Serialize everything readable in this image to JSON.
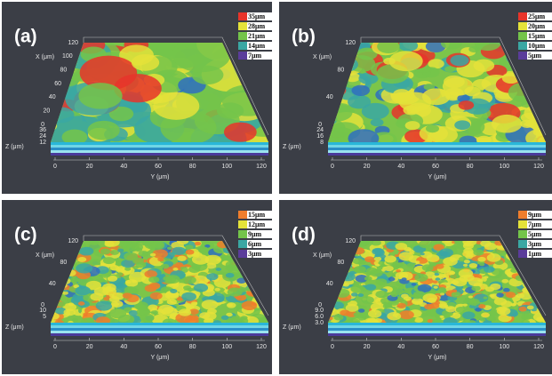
{
  "panels": [
    {
      "label": "(a)",
      "legend": [
        {
          "text": "35μm",
          "color": "#e8342a"
        },
        {
          "text": "28μm",
          "color": "#e4e23a"
        },
        {
          "text": "21μm",
          "color": "#74c44a"
        },
        {
          "text": "14μm",
          "color": "#3aa7a3"
        },
        {
          "text": "7μm",
          "color": "#5a3c9a"
        }
      ],
      "x_axis_label": "X (μm)",
      "x_ticks": [
        "120",
        "100",
        "80",
        "60",
        "40",
        "20",
        "0"
      ],
      "z_axis_label": "Z (μm)",
      "z_ticks": [
        "36",
        "24",
        "12"
      ],
      "y_axis_label": "Y (μm)",
      "y_ticks": [
        "0",
        "20",
        "40",
        "60",
        "80",
        "100",
        "120"
      ]
    },
    {
      "label": "(b)",
      "legend": [
        {
          "text": "25μm",
          "color": "#e8342a"
        },
        {
          "text": "20μm",
          "color": "#e4e23a"
        },
        {
          "text": "15μm",
          "color": "#74c44a"
        },
        {
          "text": "10μm",
          "color": "#3aa7a3"
        },
        {
          "text": "5μm",
          "color": "#5a3c9a"
        }
      ],
      "x_axis_label": "X (μm)",
      "x_ticks": [
        "120",
        "80",
        "40",
        "0"
      ],
      "z_axis_label": "Z (μm)",
      "z_ticks": [
        "24",
        "16",
        "8"
      ],
      "y_axis_label": "Y (μm)",
      "y_ticks": [
        "0",
        "20",
        "40",
        "60",
        "80",
        "100",
        "120"
      ]
    },
    {
      "label": "(c)",
      "legend": [
        {
          "text": "15μm",
          "color": "#ef7d2c"
        },
        {
          "text": "12μm",
          "color": "#e4e23a"
        },
        {
          "text": "9μm",
          "color": "#74c44a"
        },
        {
          "text": "6μm",
          "color": "#3aa7a3"
        },
        {
          "text": "3μm",
          "color": "#5a3c9a"
        }
      ],
      "x_axis_label": "X (μm)",
      "x_ticks": [
        "120",
        "80",
        "40",
        "0"
      ],
      "z_axis_label": "Z (μm)",
      "z_ticks": [
        "10",
        "5"
      ],
      "y_axis_label": "Y (μm)",
      "y_ticks": [
        "0",
        "20",
        "40",
        "60",
        "80",
        "100",
        "120"
      ]
    },
    {
      "label": "(d)",
      "legend": [
        {
          "text": "9μm",
          "color": "#ef7d2c"
        },
        {
          "text": "7μm",
          "color": "#e4e23a"
        },
        {
          "text": "5μm",
          "color": "#74c44a"
        },
        {
          "text": "3μm",
          "color": "#3aa7a3"
        },
        {
          "text": "1μm",
          "color": "#5a3c9a"
        }
      ],
      "x_axis_label": "X (μm)",
      "x_ticks": [
        "120",
        "80",
        "40",
        "0"
      ],
      "z_axis_label": "Z (μm)",
      "z_ticks": [
        "9.0",
        "6.0",
        "3.0"
      ],
      "y_axis_label": "Y (μm)",
      "y_ticks": [
        "0",
        "20",
        "40",
        "60",
        "80",
        "100",
        "120"
      ]
    }
  ]
}
